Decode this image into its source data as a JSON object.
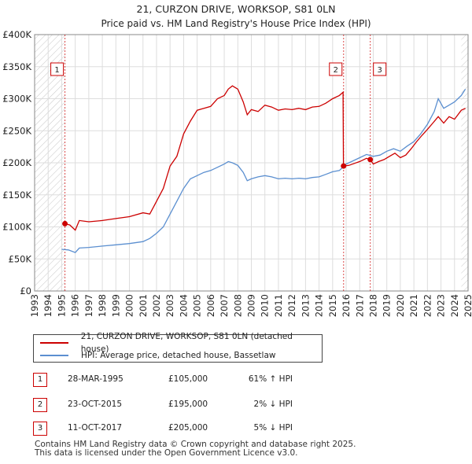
{
  "chart_data": {
    "type": "line",
    "title": "21, CURZON DRIVE, WORKSOP, S81 0LN",
    "subtitle": "Price paid vs. HM Land Registry's House Price Index (HPI)",
    "xlabel": "",
    "ylabel": "",
    "xlim": [
      1993,
      2025
    ],
    "ylim": [
      0,
      400000
    ],
    "y_ticks": [
      {
        "value": 0,
        "label": "£0"
      },
      {
        "value": 50000,
        "label": "£50K"
      },
      {
        "value": 100000,
        "label": "£100K"
      },
      {
        "value": 150000,
        "label": "£150K"
      },
      {
        "value": 200000,
        "label": "£200K"
      },
      {
        "value": 250000,
        "label": "£250K"
      },
      {
        "value": 300000,
        "label": "£300K"
      },
      {
        "value": 350000,
        "label": "£350K"
      },
      {
        "value": 400000,
        "label": "£400K"
      }
    ],
    "x_ticks": [
      "1993",
      "1994",
      "1995",
      "1996",
      "1997",
      "1998",
      "1999",
      "2000",
      "2001",
      "2002",
      "2003",
      "2004",
      "2005",
      "2006",
      "2007",
      "2008",
      "2009",
      "2010",
      "2011",
      "2012",
      "2013",
      "2014",
      "2015",
      "2016",
      "2017",
      "2018",
      "2019",
      "2020",
      "2021",
      "2022",
      "2023",
      "2024",
      "2025"
    ],
    "series": [
      {
        "name": "21, CURZON DRIVE, WORKSOP, S81 0LN (detached house)",
        "color": "#cc0000",
        "points": [
          [
            1995.24,
            105000
          ],
          [
            1995.6,
            103000
          ],
          [
            1996.0,
            95000
          ],
          [
            1996.3,
            110000
          ],
          [
            1997.0,
            108000
          ],
          [
            1998.0,
            110000
          ],
          [
            1999.0,
            113000
          ],
          [
            2000.0,
            116000
          ],
          [
            2001.0,
            122000
          ],
          [
            2001.5,
            120000
          ],
          [
            2002.0,
            140000
          ],
          [
            2002.5,
            160000
          ],
          [
            2003.0,
            195000
          ],
          [
            2003.5,
            210000
          ],
          [
            2004.0,
            245000
          ],
          [
            2004.5,
            265000
          ],
          [
            2005.0,
            282000
          ],
          [
            2005.5,
            285000
          ],
          [
            2006.0,
            288000
          ],
          [
            2006.5,
            300000
          ],
          [
            2007.0,
            305000
          ],
          [
            2007.3,
            315000
          ],
          [
            2007.6,
            320000
          ],
          [
            2008.0,
            315000
          ],
          [
            2008.4,
            295000
          ],
          [
            2008.7,
            275000
          ],
          [
            2009.0,
            283000
          ],
          [
            2009.5,
            280000
          ],
          [
            2010.0,
            290000
          ],
          [
            2010.5,
            287000
          ],
          [
            2011.0,
            282000
          ],
          [
            2011.5,
            284000
          ],
          [
            2012.0,
            283000
          ],
          [
            2012.5,
            285000
          ],
          [
            2013.0,
            283000
          ],
          [
            2013.5,
            287000
          ],
          [
            2014.0,
            288000
          ],
          [
            2014.5,
            293000
          ],
          [
            2015.0,
            300000
          ],
          [
            2015.5,
            305000
          ],
          [
            2015.77,
            310000
          ],
          [
            2015.8,
            195000
          ],
          [
            2016.2,
            196000
          ],
          [
            2016.6,
            199000
          ],
          [
            2017.0,
            202000
          ],
          [
            2017.5,
            207000
          ],
          [
            2017.78,
            205000
          ],
          [
            2018.0,
            198000
          ],
          [
            2018.4,
            202000
          ],
          [
            2018.8,
            205000
          ],
          [
            2019.2,
            210000
          ],
          [
            2019.6,
            215000
          ],
          [
            2020.0,
            208000
          ],
          [
            2020.4,
            212000
          ],
          [
            2020.8,
            222000
          ],
          [
            2021.2,
            233000
          ],
          [
            2021.6,
            243000
          ],
          [
            2022.0,
            252000
          ],
          [
            2022.4,
            262000
          ],
          [
            2022.8,
            272000
          ],
          [
            2023.2,
            262000
          ],
          [
            2023.6,
            272000
          ],
          [
            2024.0,
            268000
          ],
          [
            2024.5,
            282000
          ],
          [
            2024.8,
            285000
          ]
        ]
      },
      {
        "name": "HPI: Average price, detached house, Bassetlaw",
        "color": "#5b8fd0",
        "points": [
          [
            1995.0,
            65000
          ],
          [
            1995.5,
            64000
          ],
          [
            1996.0,
            60000
          ],
          [
            1996.3,
            67000
          ],
          [
            1997.0,
            68000
          ],
          [
            1998.0,
            70000
          ],
          [
            1999.0,
            72000
          ],
          [
            2000.0,
            74000
          ],
          [
            2001.0,
            77000
          ],
          [
            2001.5,
            82000
          ],
          [
            2002.0,
            90000
          ],
          [
            2002.5,
            100000
          ],
          [
            2003.0,
            120000
          ],
          [
            2003.5,
            140000
          ],
          [
            2004.0,
            160000
          ],
          [
            2004.5,
            175000
          ],
          [
            2005.0,
            180000
          ],
          [
            2005.5,
            185000
          ],
          [
            2006.0,
            188000
          ],
          [
            2006.5,
            193000
          ],
          [
            2007.0,
            198000
          ],
          [
            2007.3,
            202000
          ],
          [
            2007.6,
            200000
          ],
          [
            2008.0,
            196000
          ],
          [
            2008.4,
            185000
          ],
          [
            2008.7,
            172000
          ],
          [
            2009.0,
            175000
          ],
          [
            2009.5,
            178000
          ],
          [
            2010.0,
            180000
          ],
          [
            2010.5,
            178000
          ],
          [
            2011.0,
            175000
          ],
          [
            2011.5,
            176000
          ],
          [
            2012.0,
            175000
          ],
          [
            2012.5,
            176000
          ],
          [
            2013.0,
            175000
          ],
          [
            2013.5,
            177000
          ],
          [
            2014.0,
            178000
          ],
          [
            2014.5,
            182000
          ],
          [
            2015.0,
            186000
          ],
          [
            2015.5,
            188000
          ],
          [
            2016.0,
            198000
          ],
          [
            2016.5,
            203000
          ],
          [
            2017.0,
            208000
          ],
          [
            2017.5,
            213000
          ],
          [
            2018.0,
            210000
          ],
          [
            2018.5,
            212000
          ],
          [
            2019.0,
            218000
          ],
          [
            2019.5,
            222000
          ],
          [
            2020.0,
            218000
          ],
          [
            2020.5,
            226000
          ],
          [
            2021.0,
            233000
          ],
          [
            2021.5,
            245000
          ],
          [
            2022.0,
            260000
          ],
          [
            2022.5,
            280000
          ],
          [
            2022.8,
            300000
          ],
          [
            2023.2,
            285000
          ],
          [
            2023.6,
            290000
          ],
          [
            2024.0,
            295000
          ],
          [
            2024.5,
            305000
          ],
          [
            2024.8,
            315000
          ]
        ]
      }
    ],
    "transactions": [
      {
        "label": "1",
        "year": 1995.24,
        "price": 105000,
        "date": "28-MAR-1995",
        "price_text": "£105,000",
        "hpi_text": "61% ↑ HPI"
      },
      {
        "label": "2",
        "year": 2015.81,
        "price": 195000,
        "date": "23-OCT-2015",
        "price_text": "£195,000",
        "hpi_text": "2% ↓ HPI"
      },
      {
        "label": "3",
        "year": 2017.78,
        "price": 205000,
        "date": "11-OCT-2017",
        "price_text": "£205,000",
        "hpi_text": "5% ↓ HPI"
      }
    ],
    "hatched_ranges": [
      [
        1993,
        1995.24
      ],
      [
        2015.81,
        2015.81
      ],
      [
        2024.5,
        2025
      ]
    ],
    "grid": true,
    "legend_position": "below"
  },
  "footer": {
    "line1": "Contains HM Land Registry data © Crown copyright and database right 2025.",
    "line2": "This data is licensed under the Open Government Licence v3.0."
  }
}
